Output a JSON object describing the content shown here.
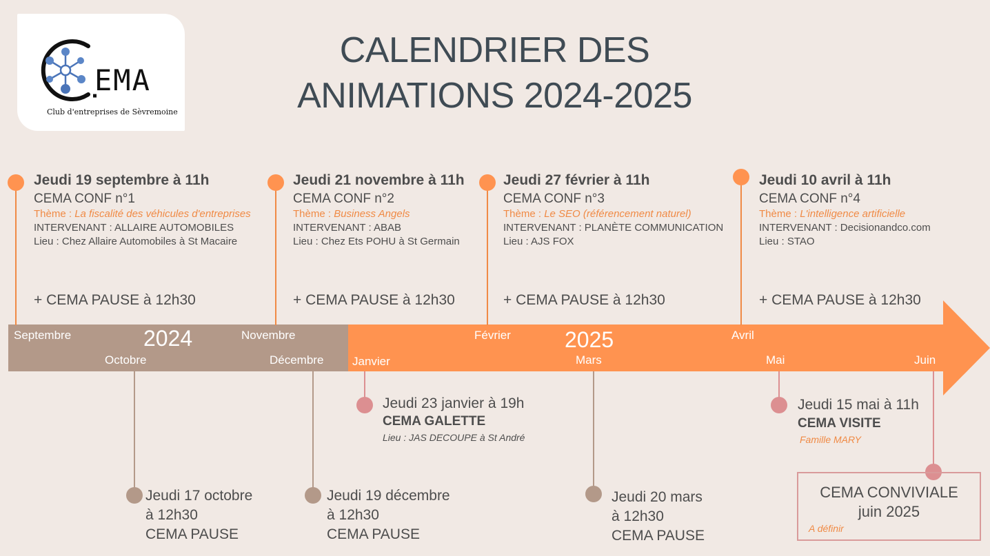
{
  "logo": {
    "letters": "EMA",
    "subtitle": "Club d'entreprises de Sèvremoine"
  },
  "title": {
    "line1": "CALENDRIER DES",
    "line2": "ANIMATIONS 2024-2025"
  },
  "colors": {
    "background": "#f1e9e4",
    "band_2024": "#b39989",
    "band_2025": "#ff9350",
    "accent": "#f08a45",
    "pink": "#dc8f91",
    "taupe": "#b39989"
  },
  "top_events": [
    {
      "date": "Jeudi 19 septembre à 11h",
      "conf": "CEMA CONF n°1",
      "theme_prefix": "Thème : ",
      "theme": "La fiscalité des véhicules d'entreprises",
      "intervenant": "INTERVENANT : ALLAIRE AUTOMOBILES",
      "lieu": "Lieu : Chez Allaire Automobiles à St Macaire",
      "pause": "+ CEMA PAUSE à 12h30"
    },
    {
      "date": "Jeudi 21 novembre à 11h",
      "conf": "CEMA CONF n°2",
      "theme_prefix": "Thème : ",
      "theme": "Business Angels",
      "intervenant": "INTERVENANT : ABAB",
      "lieu": "Lieu : Chez Ets POHU à St Germain",
      "pause": "+ CEMA PAUSE à 12h30"
    },
    {
      "date": "Jeudi 27 février à 11h",
      "conf": "CEMA CONF n°3",
      "theme_prefix": "Thème : ",
      "theme": "Le SEO (référencement naturel)",
      "intervenant": "INTERVENANT : PLANÈTE COMMUNICATION",
      "lieu": "Lieu :  AJS FOX",
      "pause": "+ CEMA PAUSE à 12h30"
    },
    {
      "date": "Jeudi 10 avril à 11h",
      "conf": "CEMA CONF n°4",
      "theme_prefix": "Thème : ",
      "theme": "L'intelligence artificielle",
      "intervenant": "INTERVENANT : Decisionandco.com",
      "lieu": "Lieu :  STAO",
      "pause": "+ CEMA PAUSE à 12h30"
    }
  ],
  "timeline": {
    "year_2024": "2024",
    "year_2025": "2025",
    "months": {
      "sep": "Septembre",
      "oct": "Octobre",
      "nov": "Novembre",
      "dec": "Décembre",
      "jan": "Janvier",
      "feb": "Février",
      "mar": "Mars",
      "apr": "Avril",
      "may": "Mai",
      "jun": "Juin"
    }
  },
  "mid_events": {
    "galette": {
      "date": "Jeudi 23 janvier à 19h",
      "name": "CEMA GALETTE",
      "lieu": "Lieu : JAS DECOUPE à St André"
    },
    "visite": {
      "date": "Jeudi 15 mai à 11h",
      "name": "CEMA VISITE",
      "host": "Famille MARY"
    }
  },
  "bottom_events": [
    {
      "l1": "Jeudi 17 octobre",
      "l2": "à 12h30",
      "l3": "CEMA PAUSE"
    },
    {
      "l1": "Jeudi 19 décembre",
      "l2": "à 12h30",
      "l3": "CEMA PAUSE"
    },
    {
      "l1": "Jeudi 20 mars",
      "l2": "à 12h30",
      "l3": "CEMA PAUSE"
    }
  ],
  "conviviale": {
    "l1": "CEMA CONVIVIALE",
    "l2": "juin 2025",
    "note": "A définir"
  }
}
